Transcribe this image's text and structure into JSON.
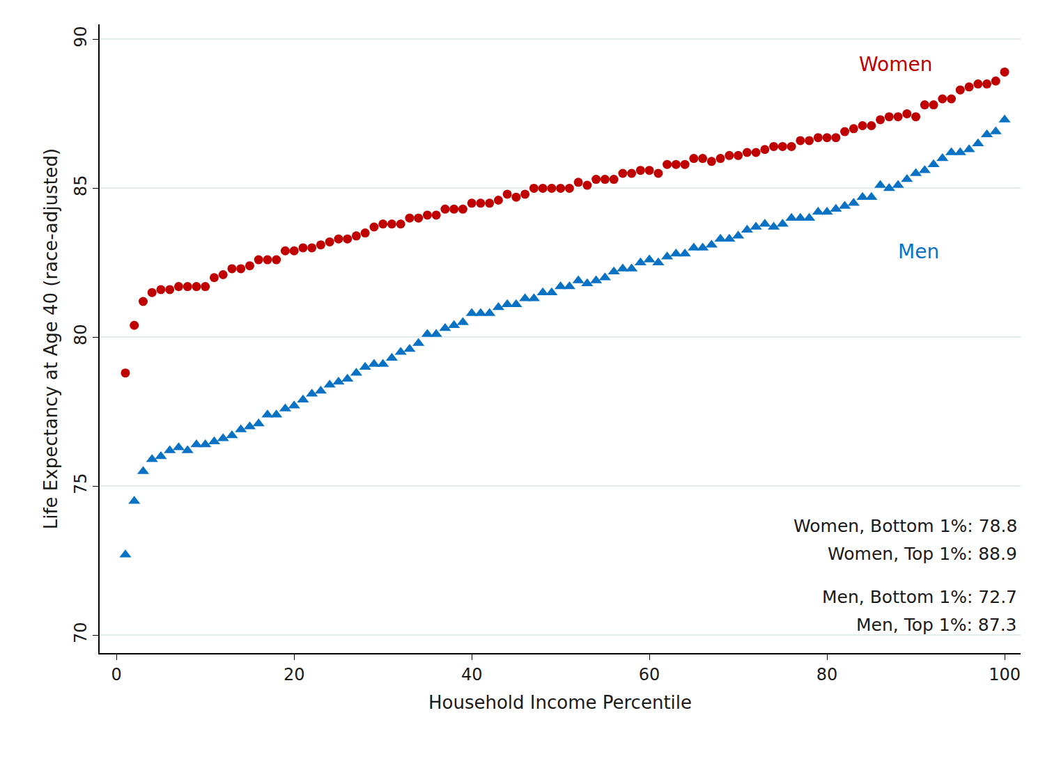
{
  "chart_data": {
    "type": "scatter",
    "x_label": "Household Income Percentile",
    "y_label": "Life Expectancy at Age 40 (race-adjusted)",
    "x": [
      1,
      2,
      3,
      4,
      5,
      6,
      7,
      8,
      9,
      10,
      11,
      12,
      13,
      14,
      15,
      16,
      17,
      18,
      19,
      20,
      21,
      22,
      23,
      24,
      25,
      26,
      27,
      28,
      29,
      30,
      31,
      32,
      33,
      34,
      35,
      36,
      37,
      38,
      39,
      40,
      41,
      42,
      43,
      44,
      45,
      46,
      47,
      48,
      49,
      50,
      51,
      52,
      53,
      54,
      55,
      56,
      57,
      58,
      59,
      60,
      61,
      62,
      63,
      64,
      65,
      66,
      67,
      68,
      69,
      70,
      71,
      72,
      73,
      74,
      75,
      76,
      77,
      78,
      79,
      80,
      81,
      82,
      83,
      84,
      85,
      86,
      87,
      88,
      89,
      90,
      91,
      92,
      93,
      94,
      95,
      96,
      97,
      98,
      99,
      100
    ],
    "series": [
      {
        "name": "Women",
        "color": "#c00000",
        "marker": "circle",
        "values": [
          78.8,
          80.4,
          81.2,
          81.5,
          81.6,
          81.6,
          81.7,
          81.7,
          81.7,
          81.7,
          82.0,
          82.1,
          82.3,
          82.3,
          82.4,
          82.6,
          82.6,
          82.6,
          82.9,
          82.9,
          83.0,
          83.0,
          83.1,
          83.2,
          83.3,
          83.3,
          83.4,
          83.5,
          83.7,
          83.8,
          83.8,
          83.8,
          84.0,
          84.0,
          84.1,
          84.1,
          84.3,
          84.3,
          84.3,
          84.5,
          84.5,
          84.5,
          84.6,
          84.8,
          84.7,
          84.8,
          85.0,
          85.0,
          85.0,
          85.0,
          85.0,
          85.2,
          85.1,
          85.3,
          85.3,
          85.3,
          85.5,
          85.5,
          85.6,
          85.6,
          85.5,
          85.8,
          85.8,
          85.8,
          86.0,
          86.0,
          85.9,
          86.0,
          86.1,
          86.1,
          86.2,
          86.2,
          86.3,
          86.4,
          86.4,
          86.4,
          86.6,
          86.6,
          86.7,
          86.7,
          86.7,
          86.9,
          87.0,
          87.1,
          87.1,
          87.3,
          87.4,
          87.4,
          87.5,
          87.4,
          87.8,
          87.8,
          88.0,
          88.0,
          88.3,
          88.4,
          88.5,
          88.5,
          88.6,
          88.9
        ]
      },
      {
        "name": "Men",
        "color": "#0a72c4",
        "marker": "triangle-up",
        "values": [
          72.7,
          74.5,
          75.5,
          75.9,
          76.0,
          76.2,
          76.3,
          76.2,
          76.4,
          76.4,
          76.5,
          76.6,
          76.7,
          76.9,
          77.0,
          77.1,
          77.4,
          77.4,
          77.6,
          77.7,
          77.9,
          78.1,
          78.2,
          78.4,
          78.5,
          78.6,
          78.8,
          79.0,
          79.1,
          79.1,
          79.3,
          79.5,
          79.6,
          79.8,
          80.1,
          80.1,
          80.3,
          80.4,
          80.5,
          80.8,
          80.8,
          80.8,
          81.0,
          81.1,
          81.1,
          81.3,
          81.3,
          81.5,
          81.5,
          81.7,
          81.7,
          81.9,
          81.8,
          81.9,
          82.0,
          82.2,
          82.3,
          82.3,
          82.5,
          82.6,
          82.5,
          82.7,
          82.8,
          82.8,
          83.0,
          83.0,
          83.1,
          83.3,
          83.3,
          83.4,
          83.6,
          83.7,
          83.8,
          83.7,
          83.8,
          84.0,
          84.0,
          84.0,
          84.2,
          84.2,
          84.3,
          84.4,
          84.5,
          84.7,
          84.7,
          85.1,
          85.0,
          85.1,
          85.3,
          85.5,
          85.6,
          85.8,
          86.0,
          86.2,
          86.2,
          86.3,
          86.5,
          86.8,
          86.9,
          87.3
        ]
      }
    ],
    "xlim": [
      -1.9,
      101.8
    ],
    "ylim": [
      69.4,
      90.5
    ],
    "xticks": [
      0,
      20,
      40,
      60,
      80,
      100
    ],
    "yticks": [
      70,
      75,
      80,
      85,
      90
    ],
    "grid": true,
    "annotations": [
      "Women, Bottom 1%: 78.8",
      "Women, Top 1%: 88.9",
      "Men, Bottom 1%: 72.7",
      "Men, Top 1%: 87.3"
    ]
  }
}
